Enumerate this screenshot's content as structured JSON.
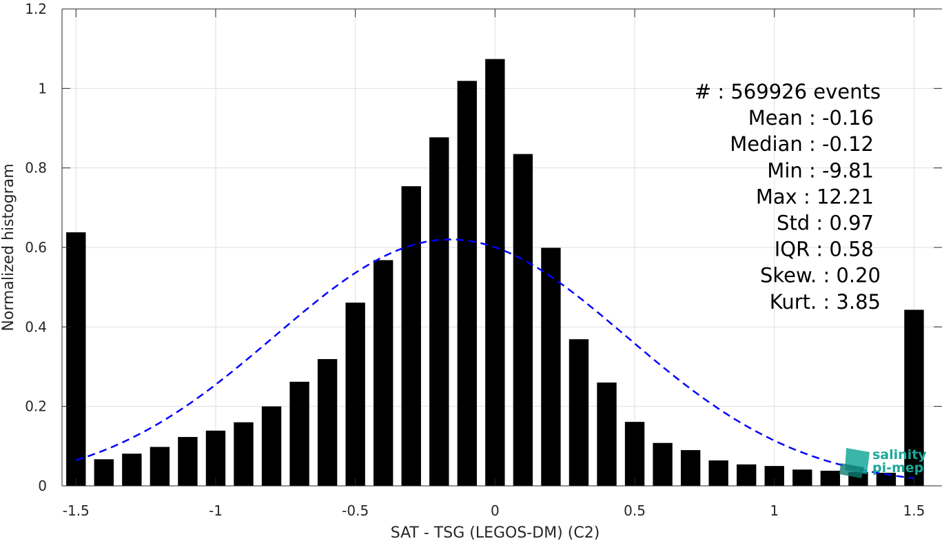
{
  "chart_data": {
    "type": "bar",
    "xlabel": "SAT - TSG (LEGOS-DM) (C2)",
    "ylabel": "Normalized histogram",
    "xlim": [
      -1.55,
      1.6
    ],
    "ylim": [
      0,
      1.2
    ],
    "xticks": [
      -1.5,
      -1,
      -0.5,
      0,
      0.5,
      1,
      1.5
    ],
    "xtick_labels": [
      "-1.5",
      "-1",
      "-0.5",
      "0",
      "0.5",
      "1",
      "1.5"
    ],
    "yticks": [
      0,
      0.2,
      0.4,
      0.6,
      0.8,
      1,
      1.2
    ],
    "ytick_labels": [
      "0",
      "0.2",
      "0.4",
      "0.6",
      "0.8",
      "1",
      "1.2"
    ],
    "grid": true,
    "bar_width": 0.07,
    "bar_color": "#000000",
    "bins": [
      -1.5,
      -1.4,
      -1.3,
      -1.2,
      -1.1,
      -1.0,
      -0.9,
      -0.8,
      -0.7,
      -0.6,
      -0.5,
      -0.4,
      -0.3,
      -0.2,
      -0.1,
      0.0,
      0.1,
      0.2,
      0.3,
      0.4,
      0.5,
      0.6,
      0.7,
      0.8,
      0.9,
      1.0,
      1.1,
      1.2,
      1.3,
      1.4,
      1.5
    ],
    "values": [
      0.638,
      0.067,
      0.081,
      0.098,
      0.123,
      0.139,
      0.16,
      0.2,
      0.262,
      0.319,
      0.461,
      0.568,
      0.754,
      0.877,
      1.019,
      1.074,
      0.835,
      0.599,
      0.369,
      0.26,
      0.161,
      0.108,
      0.09,
      0.064,
      0.054,
      0.05,
      0.041,
      0.038,
      0.035,
      0.033,
      0.443
    ],
    "fit_curve": {
      "type": "gaussian",
      "mean": -0.16,
      "std": 0.63,
      "amplitude": 0.62,
      "x_range": [
        -1.5,
        1.5
      ],
      "color": "#0000ff",
      "style": "dashed"
    },
    "stats_lines": [
      "#  : 569926 events",
      "Mean : -0.16",
      "Median : -0.12",
      "Min : -9.81",
      "Max : 12.21",
      "Std : 0.97",
      "IQR : 0.58",
      "Skew. : 0.20",
      "Kurt. : 3.85"
    ]
  },
  "logo": {
    "line1": "salinity",
    "line2": "pi-mep",
    "color": "#1aa89a",
    "dark_color": "#0d4f4a"
  }
}
